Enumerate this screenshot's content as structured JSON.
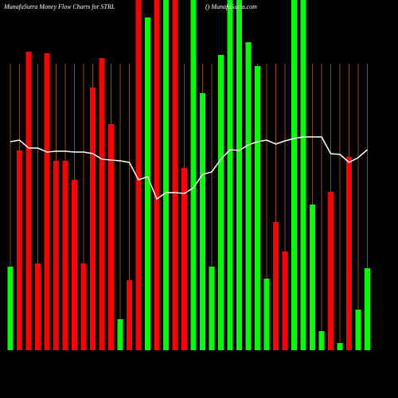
{
  "chart_data": {
    "type": "bar",
    "title": "MunafaSutra  Money Flow  Charts for STRL",
    "subtitle": "() MunafaSutra.com",
    "ylim": [
      0,
      440
    ],
    "bar_values": [
      105,
      251,
      375,
      109,
      373,
      238,
      238,
      214,
      109,
      330,
      367,
      284,
      39,
      88,
      440,
      418,
      440,
      440,
      440,
      229,
      440,
      323,
      105,
      371,
      440,
      440,
      387,
      357,
      90,
      161,
      124,
      440,
      440,
      183,
      24,
      199,
      9,
      243,
      51,
      103
    ],
    "bar_colors": [
      "#00ff00",
      "#ff0000",
      "#ff0000",
      "#ff0000",
      "#ff0000",
      "#ff0000",
      "#ff0000",
      "#ff0000",
      "#ff0000",
      "#ff0000",
      "#ff0000",
      "#ff0000",
      "#00ff00",
      "#ff0000",
      "#ff0000",
      "#00ff00",
      "#ff0000",
      "#00ff00",
      "#ff0000",
      "#ff0000",
      "#00ff00",
      "#00ff00",
      "#00ff00",
      "#00ff00",
      "#00ff00",
      "#00ff00",
      "#00ff00",
      "#00ff00",
      "#00ff00",
      "#ff0000",
      "#ff0000",
      "#00ff00",
      "#00ff00",
      "#00ff00",
      "#00ff00",
      "#ff0000",
      "#00ff00",
      "#ff0000",
      "#00ff00",
      "#00ff00"
    ],
    "line_values": [
      262,
      264,
      254,
      254,
      249,
      250,
      250,
      249,
      249,
      247,
      240,
      239,
      238,
      236,
      214,
      218,
      190,
      198,
      198,
      197,
      204,
      221,
      224,
      240,
      252,
      251,
      258,
      262,
      264,
      259,
      263,
      266,
      268,
      268,
      268,
      247,
      246,
      236,
      242,
      252
    ],
    "line_color": "#ffffff",
    "grid_color": "#8a4a00"
  }
}
